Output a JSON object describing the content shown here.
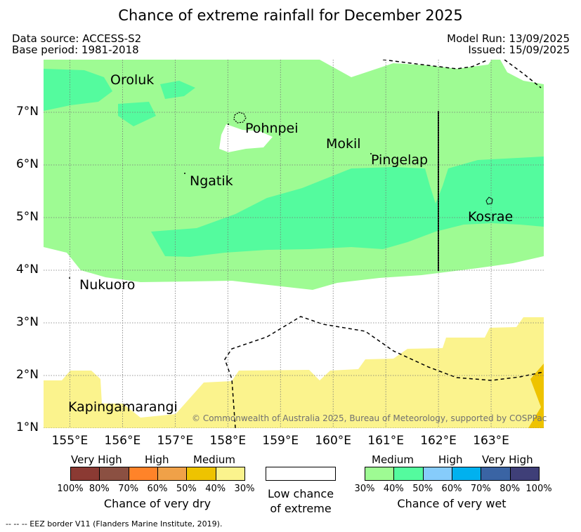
{
  "title": "Chance of extreme rainfall for December 2025",
  "meta": {
    "data_source": "Data source: ACCESS-S2",
    "base_period": "Base period: 1981-2018",
    "model_run": "Model Run: 13/09/2025",
    "issued": "Issued: 15/09/2025"
  },
  "axes": {
    "lat_labels": [
      "7°N",
      "6°N",
      "5°N",
      "4°N",
      "3°N",
      "2°N",
      "1°N"
    ],
    "lon_labels": [
      "155°E",
      "156°E",
      "157°E",
      "158°E",
      "159°E",
      "160°E",
      "161°E",
      "162°E",
      "163°E"
    ],
    "lat_range": [
      1,
      8
    ],
    "lon_range": [
      154.5,
      164
    ]
  },
  "places": {
    "oroluk": "Oroluk",
    "pohnpei": "Pohnpei",
    "mokil": "Mokil",
    "pingelap": "Pingelap",
    "ngatik": "Ngatik",
    "kosrae": "Kosrae",
    "nukuoro": "Nukuoro",
    "kapingamarangi": "Kapingamarangi"
  },
  "copyright": "© Commonwealth of Australia 2025, Bureau of Meteorology, supported by COSPPac",
  "legend": {
    "dry": {
      "levels": [
        "Very High",
        "High",
        "Medium"
      ],
      "percents": [
        "100%",
        "80%",
        "70%",
        "60%",
        "50%",
        "40%",
        "30%"
      ],
      "caption": "Chance of very dry",
      "colors": [
        "#8b3a33",
        "#8b5042",
        "#ff8329",
        "#f0a148",
        "#eec300",
        "#fbf38d"
      ]
    },
    "low": {
      "line1": "Low chance",
      "line2": "of extreme"
    },
    "wet": {
      "levels": [
        "Medium",
        "High",
        "Very High"
      ],
      "percents": [
        "30%",
        "40%",
        "50%",
        "60%",
        "70%",
        "80%",
        "100%"
      ],
      "caption": "Chance of very wet",
      "colors": [
        "#9efb93",
        "#54fb9e",
        "#86ccfb",
        "#00b1ef",
        "#3a64a4",
        "#3f3f78"
      ]
    }
  },
  "eez_note": "--  --  -- EEZ border V11 (Flanders Marine Institute, 2019)."
}
